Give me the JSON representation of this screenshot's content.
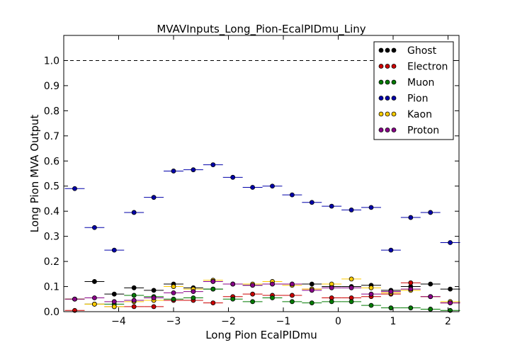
{
  "chart_data": {
    "type": "scatter",
    "title": "MVAVInputs_Long_Pion-EcalPIDmu_Liny",
    "xlabel": "Long Pion EcalPIDmu",
    "ylabel": "Long Pion MVA Output",
    "xlim": [
      -5.0,
      2.2
    ],
    "ylim": [
      0.0,
      1.1
    ],
    "xticks": [
      -4,
      -3,
      -2,
      -1,
      0,
      1,
      2
    ],
    "xtick_labels": [
      "−4",
      "−3",
      "−2",
      "−1",
      "0",
      "1",
      "2"
    ],
    "yticks": [
      0.0,
      0.1,
      0.2,
      0.3,
      0.4,
      0.5,
      0.6,
      0.7,
      0.8,
      0.9,
      1.0
    ],
    "ytick_labels": [
      "0.0",
      "0.1",
      "0.2",
      "0.3",
      "0.4",
      "0.5",
      "0.6",
      "0.7",
      "0.8",
      "0.9",
      "1.0"
    ],
    "reference_line": 1.0,
    "grid": false,
    "legend_position": "top-right",
    "x": [
      -4.8,
      -4.44,
      -4.08,
      -3.72,
      -3.36,
      -3.0,
      -2.64,
      -2.28,
      -1.92,
      -1.56,
      -1.2,
      -0.84,
      -0.48,
      -0.12,
      0.24,
      0.6,
      0.96,
      1.32,
      1.68,
      2.04
    ],
    "bin_half_width": 0.18,
    "series": [
      {
        "name": "Ghost",
        "color": "#000000",
        "values": [
          0.05,
          0.12,
          0.07,
          0.095,
          0.085,
          0.11,
          0.095,
          0.09,
          0.11,
          0.105,
          0.11,
          0.11,
          0.11,
          0.1,
          0.1,
          0.105,
          0.085,
          0.1,
          0.11,
          0.09
        ]
      },
      {
        "name": "Electron",
        "color": "#cc0000",
        "values": [
          0.005,
          0.03,
          0.02,
          0.02,
          0.02,
          0.045,
          0.045,
          0.035,
          0.06,
          0.07,
          0.065,
          0.065,
          0.09,
          0.055,
          0.055,
          0.06,
          0.07,
          0.115,
          0.06,
          0.035
        ]
      },
      {
        "name": "Muon",
        "color": "#007a00",
        "values": [
          0.05,
          0.03,
          0.03,
          0.065,
          0.06,
          0.05,
          0.055,
          0.09,
          0.05,
          0.04,
          0.055,
          0.04,
          0.035,
          0.04,
          0.04,
          0.025,
          0.015,
          0.015,
          0.01,
          0.005
        ]
      },
      {
        "name": "Pion",
        "color": "#0000aa",
        "values": [
          0.49,
          0.335,
          0.245,
          0.395,
          0.455,
          0.56,
          0.565,
          0.585,
          0.535,
          0.495,
          0.5,
          0.465,
          0.435,
          0.42,
          0.405,
          0.415,
          0.245,
          0.375,
          0.395,
          0.275
        ]
      },
      {
        "name": "Kaon",
        "color": "#ffcc00",
        "values": [
          0.05,
          0.03,
          0.02,
          0.04,
          0.045,
          0.1,
          0.09,
          0.125,
          0.11,
          0.11,
          0.12,
          0.105,
          0.09,
          0.11,
          0.13,
          0.095,
          0.075,
          0.085,
          0.06,
          0.04
        ]
      },
      {
        "name": "Proton",
        "color": "#880088",
        "values": [
          0.05,
          0.055,
          0.04,
          0.045,
          0.055,
          0.075,
          0.08,
          0.12,
          0.11,
          0.105,
          0.11,
          0.11,
          0.085,
          0.095,
          0.095,
          0.07,
          0.08,
          0.09,
          0.06,
          0.035
        ]
      }
    ]
  }
}
